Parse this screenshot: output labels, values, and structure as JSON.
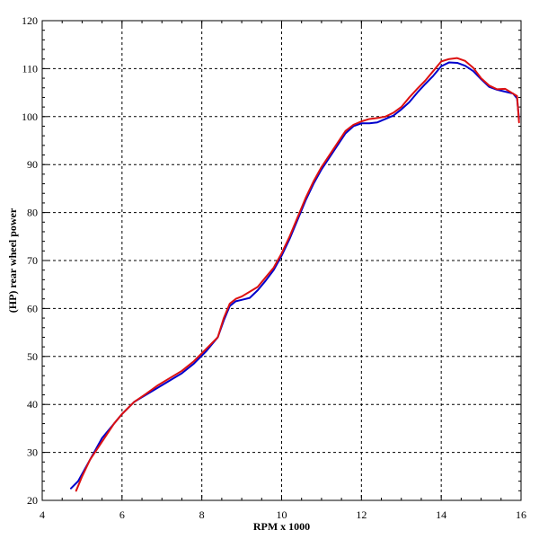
{
  "chart_data": {
    "type": "line",
    "title": "",
    "xlabel": "RPM x 1000",
    "ylabel": "(HP) rear wheel power",
    "xlim": [
      4,
      16
    ],
    "ylim": [
      20,
      120
    ],
    "x_ticks": [
      4,
      6,
      8,
      10,
      12,
      14,
      16
    ],
    "y_ticks": [
      20,
      30,
      40,
      50,
      60,
      70,
      80,
      90,
      100,
      110,
      120
    ],
    "grid": true,
    "colors": {
      "series_1": "#0000cc",
      "series_2": "#dd1111",
      "grid": "#000000",
      "axis": "#000000"
    },
    "series": [
      {
        "x": [
          4.72,
          4.9,
          5.1,
          5.3,
          5.5,
          5.75,
          6.0,
          6.3,
          6.6,
          6.9,
          7.2,
          7.5,
          7.8,
          8.1,
          8.4,
          8.55,
          8.7,
          8.85,
          9.0,
          9.2,
          9.4,
          9.6,
          9.8,
          10.0,
          10.2,
          10.4,
          10.6,
          10.8,
          11.0,
          11.2,
          11.4,
          11.6,
          11.8,
          12.0,
          12.2,
          12.4,
          12.6,
          12.8,
          13.0,
          13.2,
          13.4,
          13.6,
          13.8,
          14.0,
          14.2,
          14.4,
          14.6,
          14.8,
          15.0,
          15.2,
          15.4,
          15.6,
          15.8,
          15.9,
          15.95
        ],
        "values": [
          22.5,
          24.0,
          27.0,
          30.0,
          33.0,
          35.5,
          38.0,
          40.5,
          42.0,
          43.5,
          45.0,
          46.5,
          48.5,
          51.0,
          54.0,
          57.5,
          60.5,
          61.5,
          61.8,
          62.2,
          63.8,
          65.8,
          68.0,
          71.0,
          74.5,
          78.5,
          82.5,
          86.0,
          89.0,
          91.5,
          94.0,
          96.5,
          98.0,
          98.6,
          98.6,
          98.8,
          99.5,
          100.2,
          101.5,
          103.0,
          105.0,
          106.8,
          108.5,
          110.5,
          111.3,
          111.2,
          110.6,
          109.5,
          107.8,
          106.2,
          105.6,
          105.2,
          104.8,
          103.8,
          99.5
        ]
      },
      {
        "x": [
          4.85,
          5.0,
          5.2,
          5.4,
          5.6,
          5.8,
          6.0,
          6.3,
          6.6,
          6.9,
          7.2,
          7.5,
          7.8,
          8.1,
          8.4,
          8.55,
          8.7,
          8.85,
          9.0,
          9.2,
          9.4,
          9.6,
          9.8,
          10.0,
          10.2,
          10.4,
          10.6,
          10.8,
          11.0,
          11.2,
          11.4,
          11.6,
          11.8,
          12.0,
          12.2,
          12.4,
          12.6,
          12.8,
          13.0,
          13.2,
          13.4,
          13.6,
          13.8,
          14.0,
          14.2,
          14.4,
          14.6,
          14.8,
          15.0,
          15.2,
          15.4,
          15.6,
          15.8,
          15.9,
          15.95
        ],
        "values": [
          22.0,
          25.0,
          28.5,
          31.0,
          33.5,
          36.0,
          38.0,
          40.5,
          42.2,
          44.0,
          45.5,
          47.0,
          49.0,
          51.5,
          54.0,
          58.0,
          61.0,
          62.0,
          62.5,
          63.5,
          64.5,
          66.5,
          68.5,
          71.5,
          75.0,
          79.0,
          83.0,
          86.5,
          89.5,
          92.0,
          94.5,
          97.0,
          98.3,
          99.0,
          99.5,
          99.7,
          100.0,
          100.8,
          102.0,
          104.0,
          105.8,
          107.5,
          109.5,
          111.5,
          112.0,
          112.2,
          111.6,
          110.2,
          108.0,
          106.5,
          105.7,
          105.8,
          104.8,
          104.3,
          98.8
        ]
      }
    ]
  }
}
